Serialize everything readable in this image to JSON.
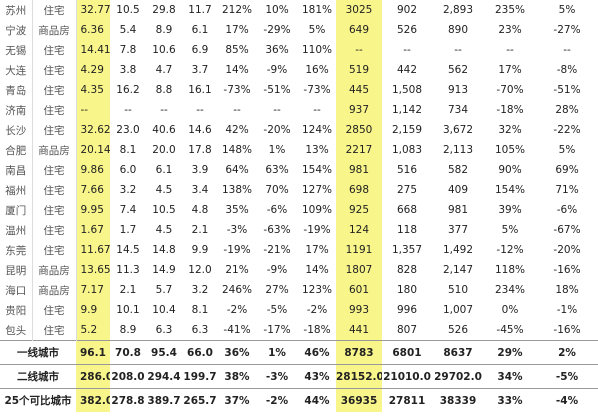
{
  "table": {
    "rows": [
      [
        "苏州",
        "住宅",
        "32.77",
        "10.5",
        "29.8",
        "11.7",
        "212%",
        "10%",
        "181%",
        "3025",
        "902",
        "2,893",
        "235%",
        "5%"
      ],
      [
        "宁波",
        "商品房",
        "6.36",
        "5.4",
        "8.9",
        "6.1",
        "17%",
        "-29%",
        "5%",
        "649",
        "526",
        "890",
        "23%",
        "-27%"
      ],
      [
        "无锡",
        "住宅",
        "14.41",
        "7.8",
        "10.6",
        "6.9",
        "85%",
        "36%",
        "110%",
        "--",
        "--",
        "--",
        "--",
        "--"
      ],
      [
        "大连",
        "住宅",
        "4.29",
        "3.8",
        "4.7",
        "3.7",
        "14%",
        "-9%",
        "16%",
        "519",
        "442",
        "562",
        "17%",
        "-8%"
      ],
      [
        "青岛",
        "住宅",
        "4.35",
        "16.2",
        "8.8",
        "16.1",
        "-73%",
        "-51%",
        "-73%",
        "445",
        "1,508",
        "913",
        "-70%",
        "-51%"
      ],
      [
        "济南",
        "住宅",
        "--",
        "--",
        "--",
        "--",
        "--",
        "--",
        "--",
        "937",
        "1,142",
        "734",
        "-18%",
        "28%"
      ],
      [
        "长沙",
        "住宅",
        "32.62",
        "23.0",
        "40.6",
        "14.6",
        "42%",
        "-20%",
        "124%",
        "2850",
        "2,159",
        "3,672",
        "32%",
        "-22%"
      ],
      [
        "合肥",
        "商品房",
        "20.14",
        "8.1",
        "20.0",
        "17.8",
        "148%",
        "1%",
        "13%",
        "2217",
        "1,083",
        "2,113",
        "105%",
        "5%"
      ],
      [
        "南昌",
        "住宅",
        "9.86",
        "6.0",
        "6.1",
        "3.9",
        "64%",
        "63%",
        "154%",
        "981",
        "516",
        "582",
        "90%",
        "69%"
      ],
      [
        "福州",
        "住宅",
        "7.66",
        "3.2",
        "4.5",
        "3.4",
        "138%",
        "70%",
        "127%",
        "698",
        "275",
        "409",
        "154%",
        "71%"
      ],
      [
        "厦门",
        "住宅",
        "9.95",
        "7.4",
        "10.5",
        "4.8",
        "35%",
        "-6%",
        "109%",
        "925",
        "668",
        "981",
        "39%",
        "-6%"
      ],
      [
        "温州",
        "住宅",
        "1.67",
        "1.7",
        "4.5",
        "2.1",
        "-3%",
        "-63%",
        "-19%",
        "124",
        "118",
        "377",
        "5%",
        "-67%"
      ],
      [
        "东莞",
        "住宅",
        "11.67",
        "14.5",
        "14.8",
        "9.9",
        "-19%",
        "-21%",
        "17%",
        "1191",
        "1,357",
        "1,492",
        "-12%",
        "-20%"
      ],
      [
        "昆明",
        "商品房",
        "13.65",
        "11.3",
        "14.9",
        "12.0",
        "21%",
        "-9%",
        "14%",
        "1807",
        "828",
        "2,147",
        "118%",
        "-16%"
      ],
      [
        "海口",
        "商品房",
        "7.17",
        "2.1",
        "5.7",
        "3.2",
        "246%",
        "27%",
        "123%",
        "601",
        "180",
        "510",
        "234%",
        "18%"
      ],
      [
        "贵阳",
        "住宅",
        "9.9",
        "10.1",
        "10.4",
        "8.1",
        "-2%",
        "-5%",
        "-2%",
        "993",
        "996",
        "1,007",
        "0%",
        "-1%"
      ],
      [
        "包头",
        "住宅",
        "5.2",
        "8.9",
        "6.3",
        "6.3",
        "-41%",
        "-17%",
        "-18%",
        "441",
        "807",
        "526",
        "-45%",
        "-16%"
      ]
    ],
    "summary": [
      {
        "label": "一线城市",
        "values": [
          "96.1",
          "70.8",
          "95.4",
          "66.0",
          "36%",
          "1%",
          "46%",
          "8783",
          "6801",
          "8637",
          "29%",
          "2%"
        ]
      },
      {
        "label": "二线城市",
        "values": [
          "286.0",
          "208.0",
          "294.4",
          "199.7",
          "38%",
          "-3%",
          "43%",
          "28152.0",
          "21010.0",
          "29702.0",
          "34%",
          "-5%"
        ]
      },
      {
        "label": "25个可比城市",
        "values": [
          "382.0",
          "278.8",
          "389.7",
          "265.7",
          "37%",
          "-2%",
          "44%",
          "36935",
          "27811",
          "38339",
          "33%",
          "-4%"
        ]
      }
    ]
  }
}
